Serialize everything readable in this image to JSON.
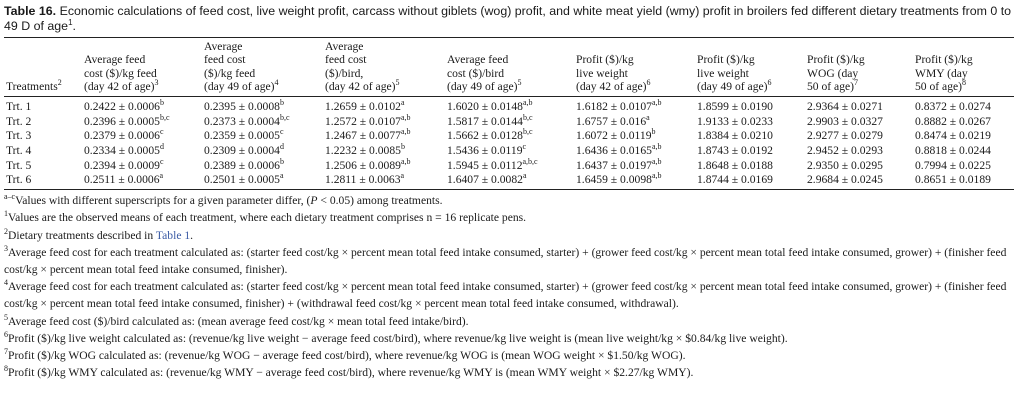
{
  "caption": {
    "label": "Table 16.",
    "text": "Economic calculations of feed cost, live weight profit, carcass without giblets (wog) profit, and white meat yield (wmy) profit in broilers fed different dietary treatments from 0 to 49 D of age",
    "sup": "1",
    "end": "."
  },
  "headers": [
    {
      "lines": [
        "Treatments"
      ],
      "sup": "2"
    },
    {
      "lines": [
        "Average feed",
        "cost ($)/kg feed",
        "(day 42 of age)"
      ],
      "sup": "3"
    },
    {
      "lines": [
        "Average",
        "feed cost",
        "($)/kg feed",
        "(day 49 of age)"
      ],
      "sup": "4"
    },
    {
      "lines": [
        "Average",
        "feed cost",
        "($)/bird,",
        "(day 42 of age)"
      ],
      "sup": "5"
    },
    {
      "lines": [
        "Average feed",
        "cost ($)/bird",
        "(day 49 of age)"
      ],
      "sup": "5"
    },
    {
      "lines": [
        "Profit ($)/kg",
        "live weight",
        "(day 42 of age)"
      ],
      "sup": "6"
    },
    {
      "lines": [
        "Profit ($)/kg",
        "live weight",
        "(day 49 of age)"
      ],
      "sup": "6"
    },
    {
      "lines": [
        "Profit ($)/kg",
        "WOG (day",
        "50 of age)"
      ],
      "sup": "7"
    },
    {
      "lines": [
        "Profit ($)/kg",
        "WMY (day",
        "50 of age)"
      ],
      "sup": "8"
    }
  ],
  "rows": [
    {
      "treatment": "Trt. 1",
      "cells": [
        {
          "v": "0.2422 ± 0.0006",
          "s": "b"
        },
        {
          "v": "0.2395 ± 0.0008",
          "s": "b"
        },
        {
          "v": "1.2659 ± 0.0102",
          "s": "a"
        },
        {
          "v": "1.6020 ± 0.0148",
          "s": "a,b"
        },
        {
          "v": "1.6182 ± 0.0107",
          "s": "a,b"
        },
        {
          "v": "1.8599 ± 0.0190",
          "s": ""
        },
        {
          "v": "2.9364 ± 0.0271",
          "s": ""
        },
        {
          "v": "0.8372 ± 0.0274",
          "s": ""
        }
      ]
    },
    {
      "treatment": "Trt. 2",
      "cells": [
        {
          "v": "0.2396 ± 0.0005",
          "s": "b,c"
        },
        {
          "v": "0.2373 ± 0.0004",
          "s": "b,c"
        },
        {
          "v": "1.2572 ± 0.0107",
          "s": "a,b"
        },
        {
          "v": "1.5817 ± 0.0144",
          "s": "b,c"
        },
        {
          "v": "1.6757 ± 0.016",
          "s": "a"
        },
        {
          "v": "1.9133 ± 0.0233",
          "s": ""
        },
        {
          "v": "2.9903 ± 0.0327",
          "s": ""
        },
        {
          "v": "0.8882 ± 0.0267",
          "s": ""
        }
      ]
    },
    {
      "treatment": "Trt. 3",
      "cells": [
        {
          "v": "0.2379 ± 0.0006",
          "s": "c"
        },
        {
          "v": "0.2359 ± 0.0005",
          "s": "c"
        },
        {
          "v": "1.2467 ± 0.0077",
          "s": "a,b"
        },
        {
          "v": "1.5662 ± 0.0128",
          "s": "b,c"
        },
        {
          "v": "1.6072 ± 0.0119",
          "s": "b"
        },
        {
          "v": "1.8384 ± 0.0210",
          "s": ""
        },
        {
          "v": "2.9277 ± 0.0279",
          "s": ""
        },
        {
          "v": "0.8474 ± 0.0219",
          "s": ""
        }
      ]
    },
    {
      "treatment": "Trt. 4",
      "cells": [
        {
          "v": "0.2334 ± 0.0005",
          "s": "d"
        },
        {
          "v": "0.2309 ± 0.0004",
          "s": "d"
        },
        {
          "v": "1.2232 ± 0.0085",
          "s": "b"
        },
        {
          "v": "1.5436 ± 0.0119",
          "s": "c"
        },
        {
          "v": "1.6436 ± 0.0165",
          "s": "a,b"
        },
        {
          "v": "1.8743 ± 0.0192",
          "s": ""
        },
        {
          "v": "2.9452 ± 0.0293",
          "s": ""
        },
        {
          "v": "0.8818 ± 0.0244",
          "s": ""
        }
      ]
    },
    {
      "treatment": "Trt. 5",
      "cells": [
        {
          "v": "0.2394 ± 0.0009",
          "s": "c"
        },
        {
          "v": "0.2389 ± 0.0006",
          "s": "b"
        },
        {
          "v": "1.2506 ± 0.0089",
          "s": "a,b"
        },
        {
          "v": "1.5945 ± 0.0112",
          "s": "a,b,c"
        },
        {
          "v": "1.6437 ± 0.0197",
          "s": "a,b"
        },
        {
          "v": "1.8648 ± 0.0188",
          "s": ""
        },
        {
          "v": "2.9350 ± 0.0295",
          "s": ""
        },
        {
          "v": "0.7994 ± 0.0225",
          "s": ""
        }
      ]
    },
    {
      "treatment": "Trt. 6",
      "cells": [
        {
          "v": "0.2511 ± 0.0006",
          "s": "a"
        },
        {
          "v": "0.2501 ± 0.0005",
          "s": "a"
        },
        {
          "v": "1.2811 ± 0.0063",
          "s": "a"
        },
        {
          "v": "1.6407 ± 0.0082",
          "s": "a"
        },
        {
          "v": "1.6459 ± 0.0098",
          "s": "a,b"
        },
        {
          "v": "1.8744 ± 0.0169",
          "s": ""
        },
        {
          "v": "2.9684 ± 0.0245",
          "s": ""
        },
        {
          "v": "0.8651 ± 0.0189",
          "s": ""
        }
      ]
    }
  ],
  "footnotes": [
    {
      "mark": "a–c",
      "text": "Values with different superscripts for a given parameter differ, (",
      "italic": "P",
      "after": " < 0.05) among treatments."
    },
    {
      "mark": "1",
      "text": "Values are the observed means of each treatment, where each dietary treatment comprises n = 16 replicate pens."
    },
    {
      "mark": "2",
      "text": "Dietary treatments described in ",
      "link": "Table 1",
      "after": "."
    },
    {
      "mark": "3",
      "text": "Average feed cost for each treatment calculated as: (starter feed cost/kg × percent mean total feed intake consumed, starter) + (grower feed cost/kg × percent mean total feed intake consumed, grower) + (finisher feed cost/kg × percent mean total feed intake consumed, finisher)."
    },
    {
      "mark": "4",
      "text": "Average feed cost for each treatment calculated as: (starter feed cost/kg × percent mean total feed intake consumed, starter) + (grower feed cost/kg × percent mean total feed intake consumed, grower) + (finisher feed cost/kg × percent mean total feed intake consumed, finisher) + (withdrawal feed cost/kg × percent mean total feed intake consumed, withdrawal)."
    },
    {
      "mark": "5",
      "text": "Average feed cost ($)/bird calculated as: (mean average feed cost/kg × mean total feed intake/bird)."
    },
    {
      "mark": "6",
      "text": "Profit ($)/kg live weight calculated as: (revenue/kg live weight − average feed cost/bird), where revenue/kg live weight is (mean live weight/kg × $0.84/kg live weight)."
    },
    {
      "mark": "7",
      "text": "Profit ($)/kg WOG calculated as: (revenue/kg WOG − average feed cost/bird), where revenue/kg WOG is (mean WOG weight × $1.50/kg WOG)."
    },
    {
      "mark": "8",
      "text": "Profit ($)/kg WMY calculated as: (revenue/kg WMY − average feed cost/bird), where revenue/kg WMY is (mean WMY weight × $2.27/kg WMY)."
    }
  ],
  "colors": {
    "text": "#1a1a1a",
    "link": "#3b5ba5",
    "rule": "#222222"
  }
}
